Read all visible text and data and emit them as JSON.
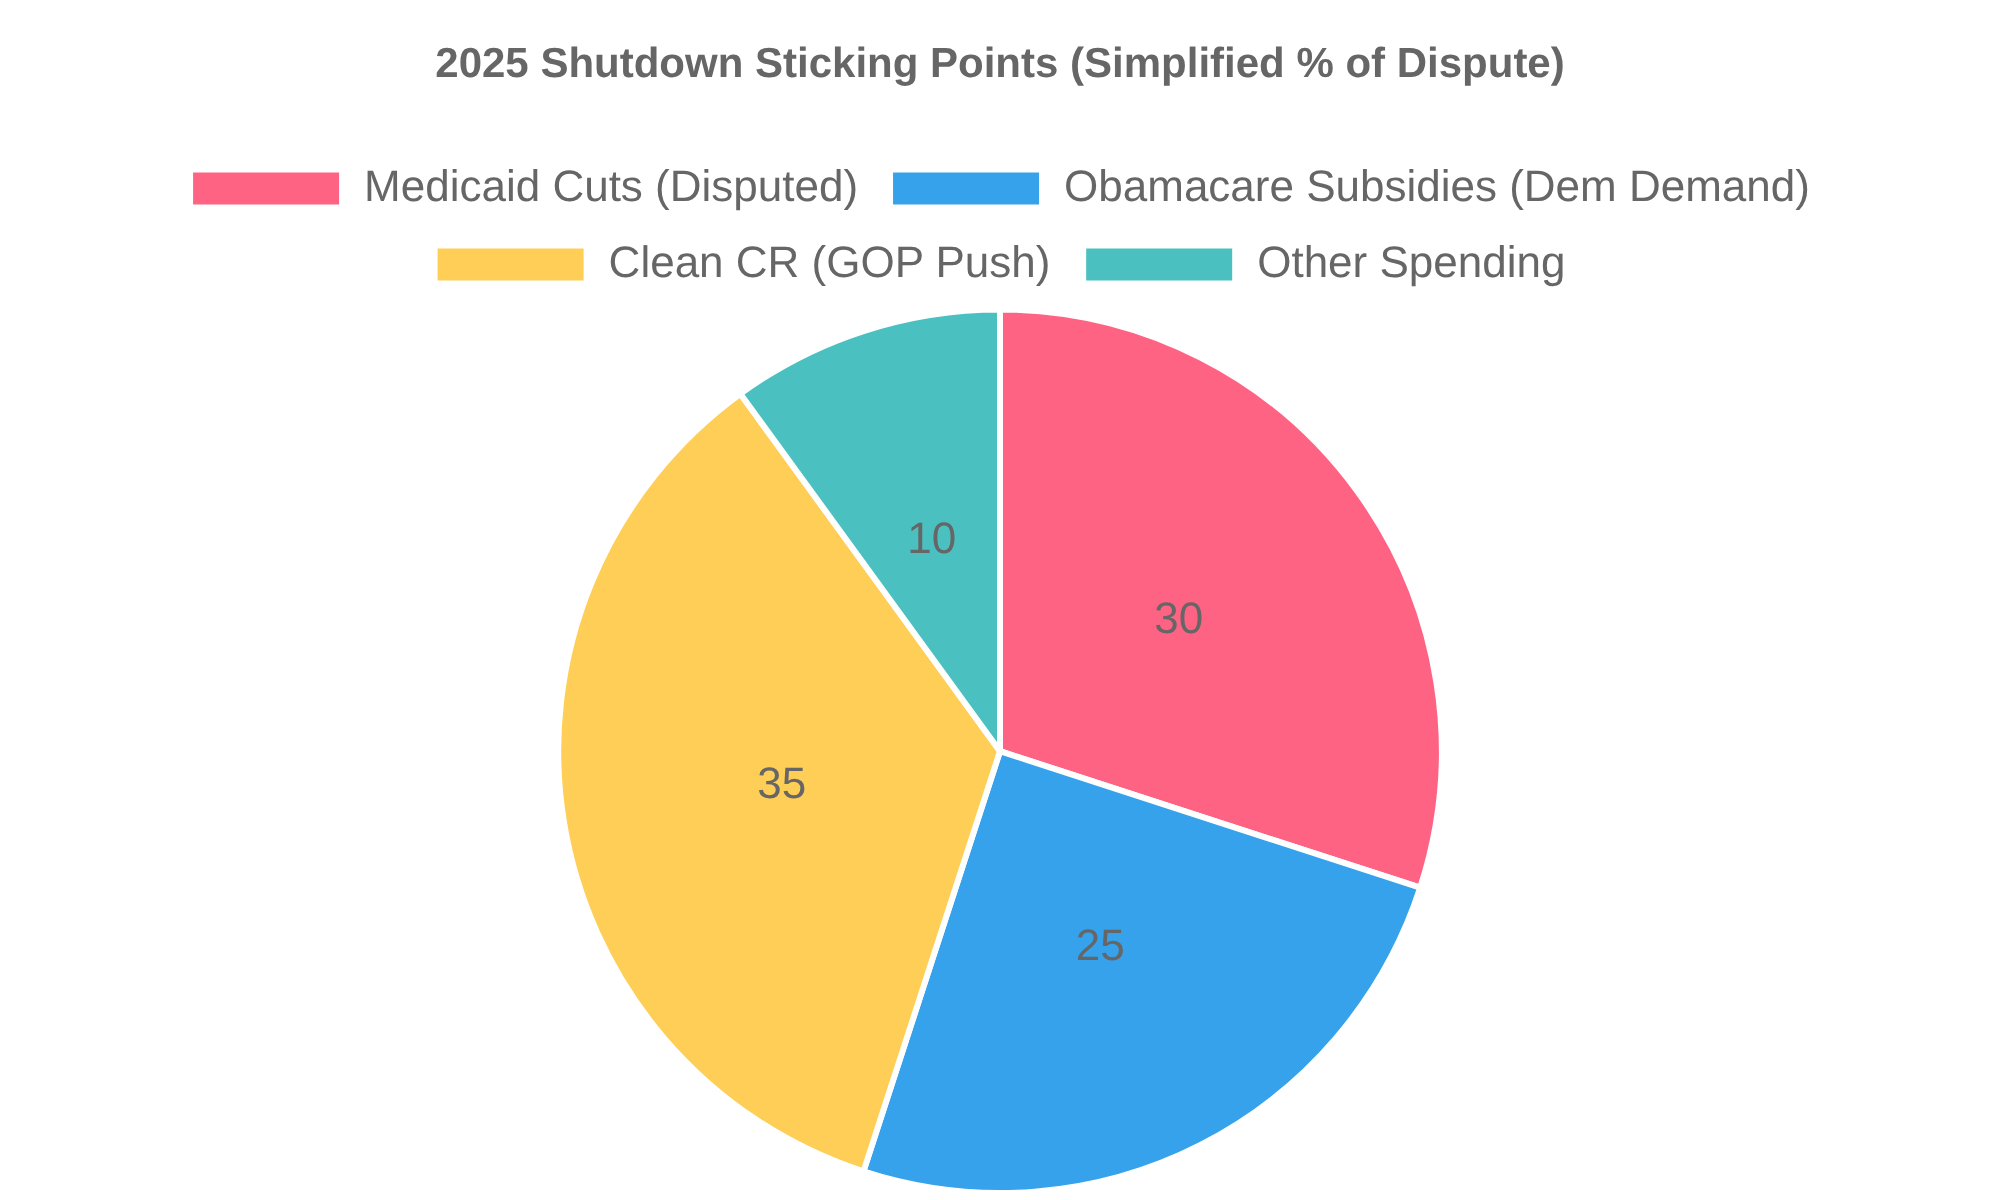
{
  "chart_data": {
    "type": "pie",
    "title": "2025 Shutdown Sticking Points (Simplified % of Dispute)",
    "categories": [
      "Medicaid Cuts (Disputed)",
      "Obamacare Subsidies (Dem Demand)",
      "Clean CR (GOP Push)",
      "Other Spending"
    ],
    "values": [
      30,
      25,
      35,
      10
    ],
    "colors": [
      "#ff6384",
      "#36a2eb",
      "#ffce56",
      "#4bc0c0"
    ],
    "legend": "top",
    "data_labels": true
  }
}
